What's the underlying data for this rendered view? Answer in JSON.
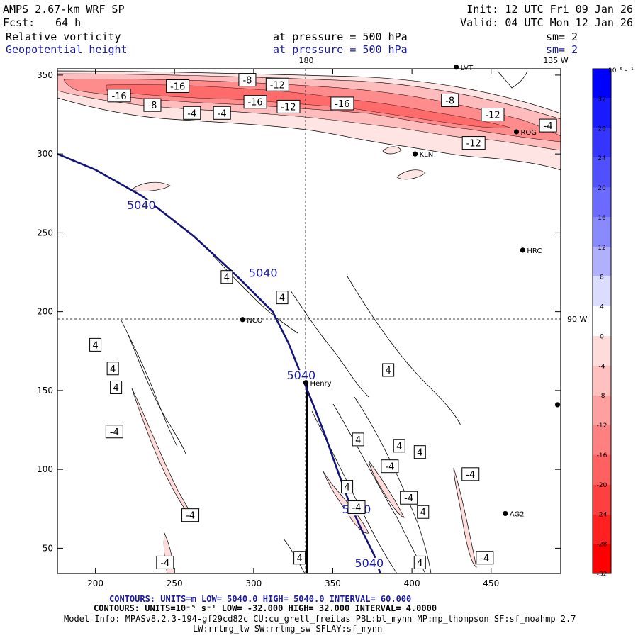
{
  "header": {
    "model": "AMPS 2.67-km WRF SP",
    "forecast_label": "Fcst:",
    "forecast_hours": "64 h",
    "init": "Init: 12 UTC Fri 09 Jan 26",
    "valid": "Valid: 04 UTC Mon 12 Jan 26",
    "field1_name": "Relative vorticity",
    "field1_level": "at pressure =  500 hPa",
    "field1_sm": "sm= 2",
    "field2_name": "Geopotential height",
    "field2_level": "at pressure =  500 hPa",
    "field2_sm": "sm= 2"
  },
  "map_labels": {
    "lon_top": "180",
    "lon_top_right": "135 W",
    "lon_right": "90 W"
  },
  "stations": [
    {
      "name": "LVT",
      "x": 428,
      "y": 355
    },
    {
      "name": "ROG",
      "x": 466,
      "y": 314
    },
    {
      "name": "KLN",
      "x": 402,
      "y": 300
    },
    {
      "name": "HRC",
      "x": 470,
      "y": 239
    },
    {
      "name": "NCO",
      "x": 293,
      "y": 195
    },
    {
      "name": "Henry",
      "x": 333,
      "y": 155
    },
    {
      "name": "AG2",
      "x": 459,
      "y": 72
    },
    {
      "name": "",
      "x": 492,
      "y": 141
    }
  ],
  "footer": {
    "line1": "CONTOURS:  UNITS=m  LOW=  5040.0       HIGH=  5040.0       INTERVAL=   60.000",
    "line2": "CONTOURS:  UNITS=10⁻⁵ s⁻¹  LOW= -32.000       HIGH=  32.000       INTERVAL=   4.0000",
    "line3": "Model Info: MPASv8.2.3-194-gf29cd82c CU:cu_grell_freitas PBL:bl_mynn MP:mp_thompson SF:sf_noahmp 2.7",
    "line4": "LW:rrtmg_lw SW:rrtmg_sw SFLAY:sf_mynn"
  },
  "colorbar": {
    "unit": "10⁻⁵ s⁻¹",
    "levels": [
      32,
      28,
      24,
      20,
      16,
      12,
      8,
      4,
      0,
      -4,
      -8,
      -12,
      -16,
      -20,
      -24,
      -28,
      -32
    ],
    "colors": [
      "#0000ff",
      "#1a1aff",
      "#3535ff",
      "#5050ff",
      "#6b6bff",
      "#8a8aff",
      "#b0b0ff",
      "#dcdcff",
      "#ffffff",
      "#ffdcdc",
      "#ffc0c0",
      "#ffa0a0",
      "#ff8080",
      "#ff6060",
      "#ff4040",
      "#ff2020",
      "#ff0000"
    ]
  },
  "chart_data": {
    "type": "contour",
    "title": "Relative vorticity and Geopotential height at 500 hPa",
    "xlabel": "",
    "ylabel": "",
    "xlim": [
      176,
      494
    ],
    "ylim": [
      34,
      354
    ],
    "xticks": [
      200,
      250,
      300,
      350,
      400,
      450
    ],
    "yticks": [
      50,
      100,
      150,
      200,
      250,
      300,
      350
    ],
    "grid": false,
    "height_contours": [
      {
        "value": 5040,
        "points": [
          [
            176,
            300
          ],
          [
            200,
            290
          ],
          [
            230,
            273
          ],
          [
            262,
            248
          ],
          [
            290,
            222
          ],
          [
            312,
            200
          ],
          [
            322,
            180
          ],
          [
            330,
            160
          ],
          [
            338,
            140
          ],
          [
            345,
            122
          ],
          [
            352,
            102
          ],
          [
            360,
            80
          ],
          [
            368,
            62
          ],
          [
            376,
            46
          ],
          [
            380,
            34
          ]
        ]
      }
    ],
    "height_labels": [
      {
        "text": "5040",
        "x": 229,
        "y": 266
      },
      {
        "text": "5040",
        "x": 306,
        "y": 223
      },
      {
        "text": "5040",
        "x": 330,
        "y": 158
      },
      {
        "text": "5040",
        "x": 365,
        "y": 73
      },
      {
        "text": "5040",
        "x": 373,
        "y": 39
      }
    ],
    "vorticity_labels": [
      {
        "text": "-8",
        "x": 296,
        "y": 347
      },
      {
        "text": "-16",
        "x": 252,
        "y": 343
      },
      {
        "text": "-12",
        "x": 315,
        "y": 344
      },
      {
        "text": "-16",
        "x": 215,
        "y": 337
      },
      {
        "text": "-8",
        "x": 236,
        "y": 331
      },
      {
        "text": "-16",
        "x": 301,
        "y": 333
      },
      {
        "text": "-12",
        "x": 322,
        "y": 330
      },
      {
        "text": "-16",
        "x": 356,
        "y": 332
      },
      {
        "text": "-8",
        "x": 424,
        "y": 334
      },
      {
        "text": "-4",
        "x": 261,
        "y": 326
      },
      {
        "text": "-4",
        "x": 280,
        "y": 326
      },
      {
        "text": "-12",
        "x": 451,
        "y": 325
      },
      {
        "text": "-4",
        "x": 486,
        "y": 318
      },
      {
        "text": "-12",
        "x": 439,
        "y": 307
      },
      {
        "text": "4",
        "x": 283,
        "y": 222
      },
      {
        "text": "4",
        "x": 318,
        "y": 209
      },
      {
        "text": "4",
        "x": 200,
        "y": 179
      },
      {
        "text": "4",
        "x": 211,
        "y": 164
      },
      {
        "text": "4",
        "x": 213,
        "y": 152
      },
      {
        "text": "4",
        "x": 385,
        "y": 163
      },
      {
        "text": "-4",
        "x": 212,
        "y": 124
      },
      {
        "text": "4",
        "x": 366,
        "y": 119
      },
      {
        "text": "4",
        "x": 392,
        "y": 115
      },
      {
        "text": "4",
        "x": 405,
        "y": 111
      },
      {
        "text": "-4",
        "x": 386,
        "y": 102
      },
      {
        "text": "-4",
        "x": 437,
        "y": 97
      },
      {
        "text": "4",
        "x": 359,
        "y": 89
      },
      {
        "text": "-4",
        "x": 398,
        "y": 82
      },
      {
        "text": "-4",
        "x": 365,
        "y": 76
      },
      {
        "text": "4",
        "x": 407,
        "y": 73
      },
      {
        "text": "-4",
        "x": 260,
        "y": 71
      },
      {
        "text": "4",
        "x": 329,
        "y": 44
      },
      {
        "text": "4",
        "x": 405,
        "y": 41
      },
      {
        "text": "-4",
        "x": 446,
        "y": 44
      },
      {
        "text": "-4",
        "x": 244,
        "y": 41
      }
    ],
    "reference_lines": {
      "lon_180_x": 331,
      "lat_90w_y": 195,
      "bold_segment_x": 333,
      "bold_segment_y": [
        34,
        155
      ]
    }
  }
}
